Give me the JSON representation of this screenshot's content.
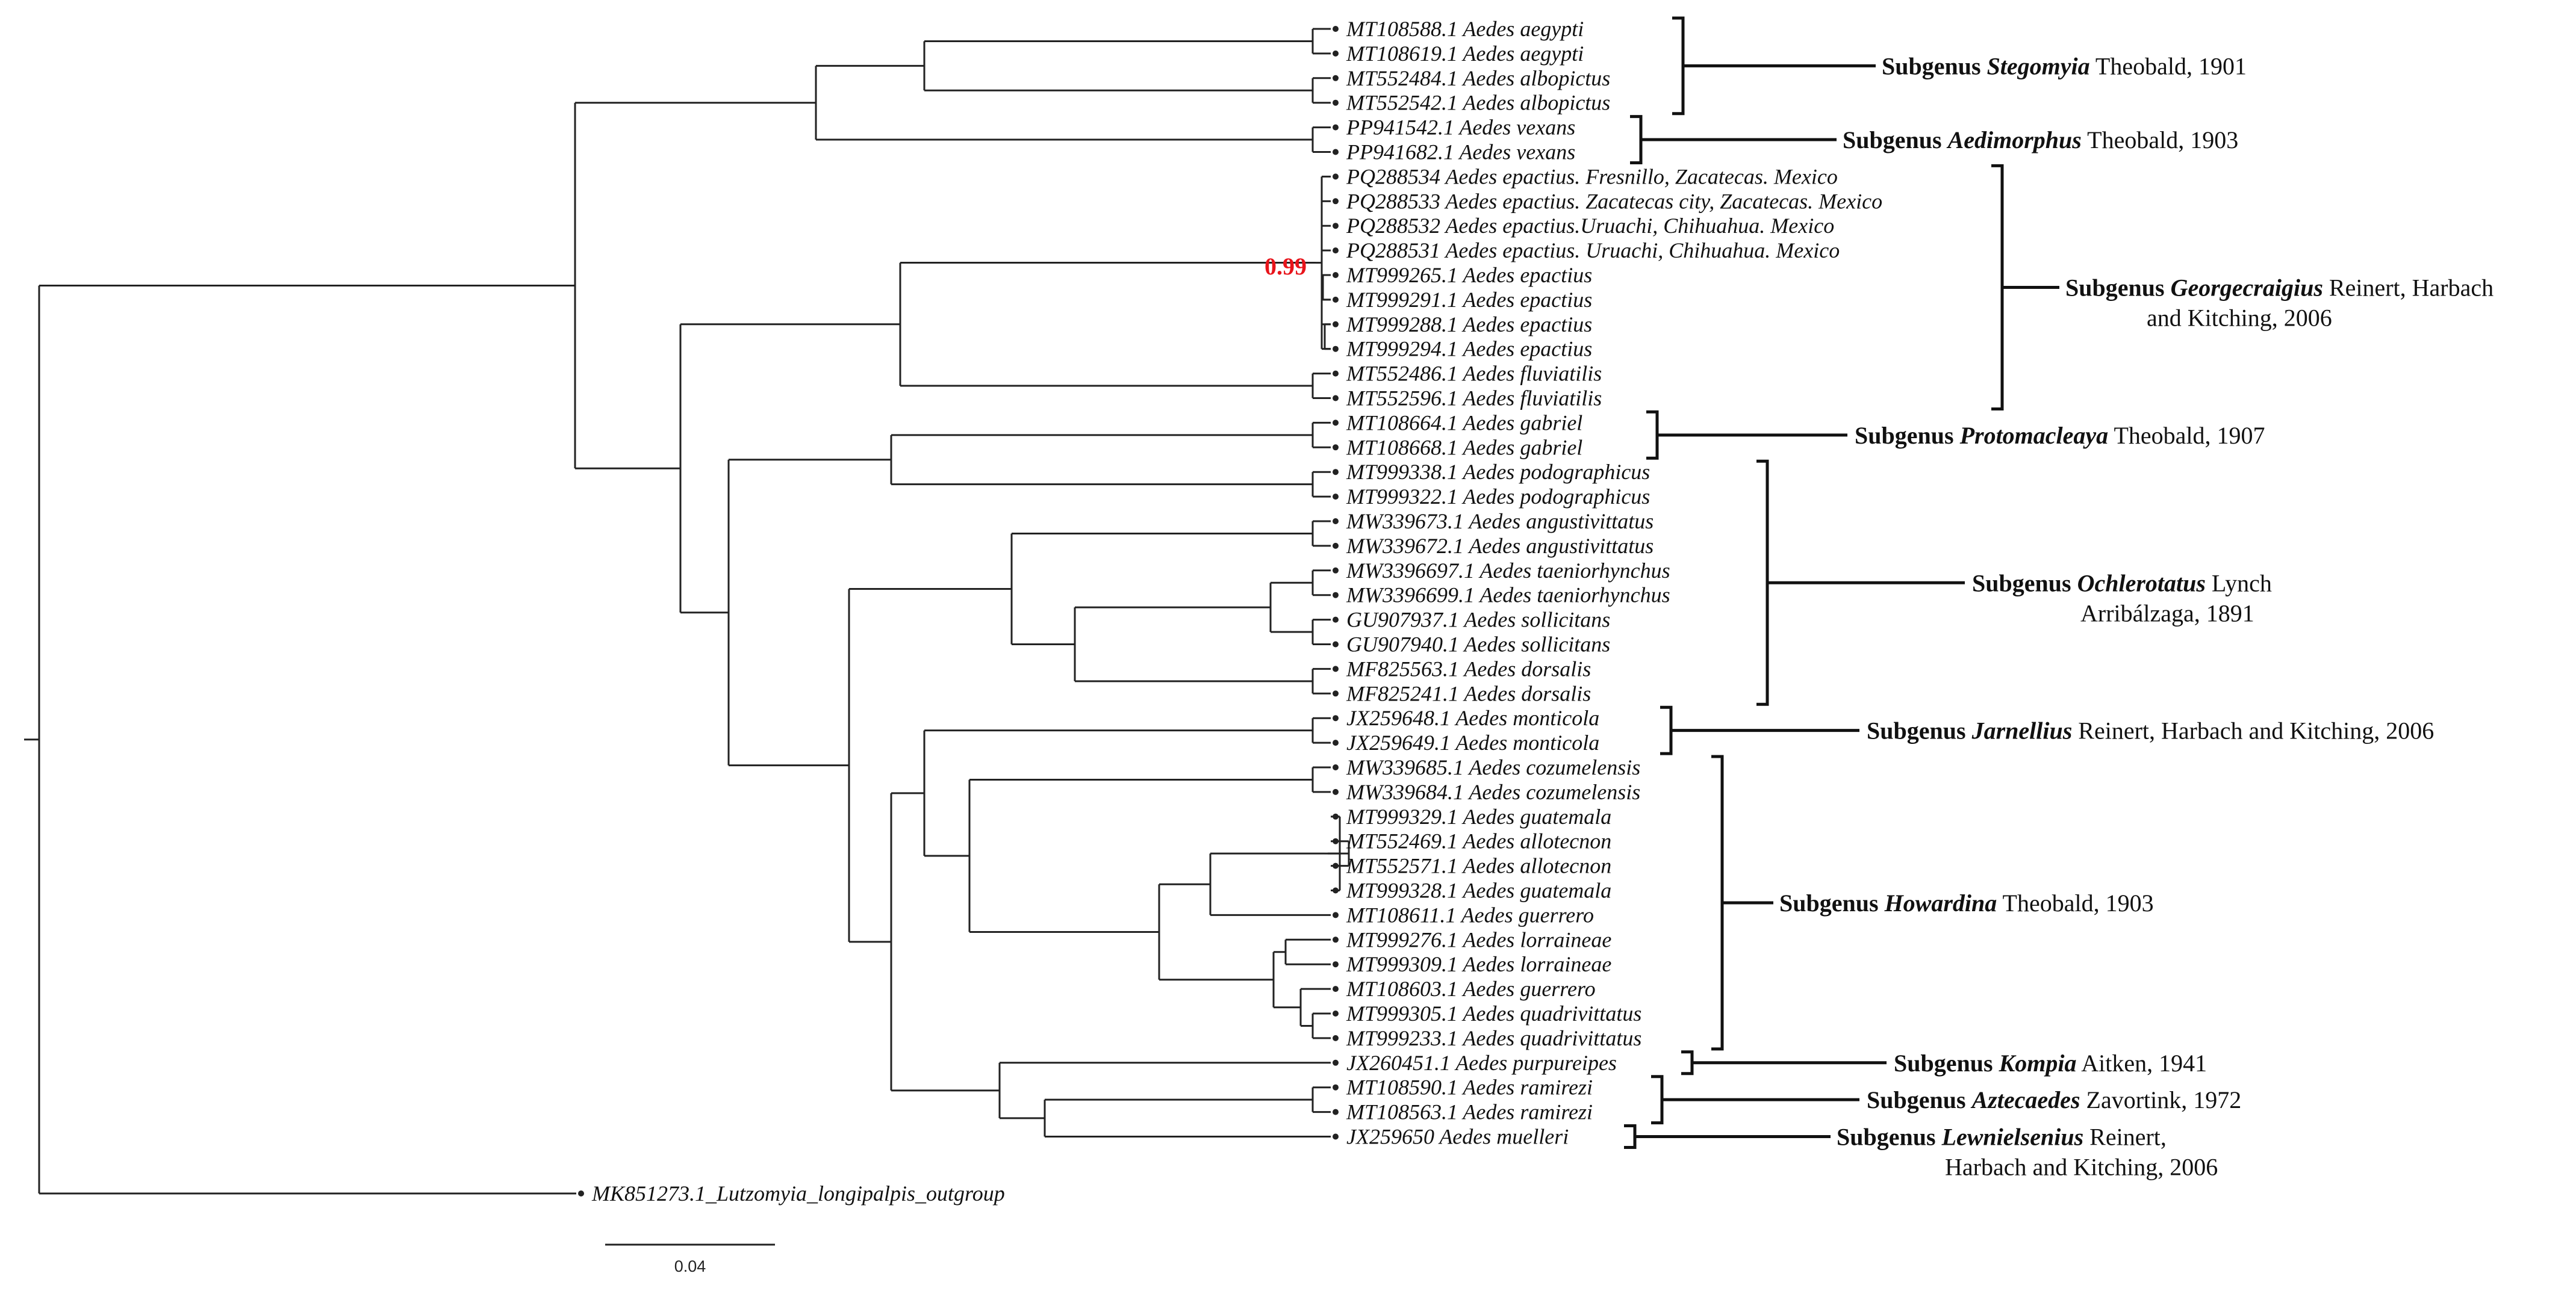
{
  "tips": [
    {
      "id": "t1",
      "label": "MT108588.1 Aedes aegypti"
    },
    {
      "id": "t2",
      "label": "MT108619.1 Aedes aegypti"
    },
    {
      "id": "t3",
      "label": "MT552484.1 Aedes albopictus"
    },
    {
      "id": "t4",
      "label": "MT552542.1 Aedes albopictus"
    },
    {
      "id": "t5",
      "label": "PP941542.1 Aedes vexans"
    },
    {
      "id": "t6",
      "label": "PP941682.1 Aedes vexans"
    },
    {
      "id": "t7",
      "label": "PQ288534 Aedes epactius. Fresnillo, Zacatecas. Mexico"
    },
    {
      "id": "t8",
      "label": "PQ288533 Aedes epactius. Zacatecas city, Zacatecas. Mexico"
    },
    {
      "id": "t9",
      "label": "PQ288532 Aedes epactius.Uruachi, Chihuahua. Mexico"
    },
    {
      "id": "t10",
      "label": "PQ288531 Aedes epactius. Uruachi, Chihuahua. Mexico"
    },
    {
      "id": "t11",
      "label": "MT999265.1 Aedes epactius"
    },
    {
      "id": "t12",
      "label": "MT999291.1 Aedes epactius"
    },
    {
      "id": "t13",
      "label": "MT999288.1 Aedes epactius"
    },
    {
      "id": "t14",
      "label": "MT999294.1 Aedes epactius"
    },
    {
      "id": "t15",
      "label": "MT552486.1 Aedes fluviatilis"
    },
    {
      "id": "t16",
      "label": "MT552596.1 Aedes fluviatilis"
    },
    {
      "id": "t17",
      "label": "MT108664.1 Aedes gabriel"
    },
    {
      "id": "t18",
      "label": "MT108668.1 Aedes gabriel"
    },
    {
      "id": "t19",
      "label": "MT999338.1 Aedes podographicus"
    },
    {
      "id": "t20",
      "label": "MT999322.1 Aedes podographicus"
    },
    {
      "id": "t21",
      "label": "MW339673.1 Aedes angustivittatus"
    },
    {
      "id": "t22",
      "label": "MW339672.1 Aedes angustivittatus"
    },
    {
      "id": "t23",
      "label": "MW3396697.1 Aedes taeniorhynchus"
    },
    {
      "id": "t24",
      "label": "MW3396699.1 Aedes taeniorhynchus"
    },
    {
      "id": "t25",
      "label": "GU907937.1 Aedes sollicitans"
    },
    {
      "id": "t26",
      "label": "GU907940.1 Aedes sollicitans"
    },
    {
      "id": "t27",
      "label": "MF825563.1 Aedes dorsalis"
    },
    {
      "id": "t28",
      "label": "MF825241.1 Aedes dorsalis"
    },
    {
      "id": "t29",
      "label": "JX259648.1 Aedes monticola"
    },
    {
      "id": "t30",
      "label": "JX259649.1 Aedes monticola"
    },
    {
      "id": "t31",
      "label": "MW339685.1 Aedes cozumelensis"
    },
    {
      "id": "t32",
      "label": "MW339684.1 Aedes cozumelensis"
    },
    {
      "id": "t33",
      "label": "MT999329.1 Aedes guatemala"
    },
    {
      "id": "t34",
      "label": "MT552469.1 Aedes allotecnon"
    },
    {
      "id": "t35",
      "label": "MT552571.1 Aedes allotecnon"
    },
    {
      "id": "t36",
      "label": "MT999328.1 Aedes guatemala"
    },
    {
      "id": "t37",
      "label": "MT108611.1 Aedes guerrero"
    },
    {
      "id": "t38",
      "label": "MT999276.1 Aedes lorraineae"
    },
    {
      "id": "t39",
      "label": "MT999309.1 Aedes lorraineae"
    },
    {
      "id": "t40",
      "label": "MT108603.1 Aedes guerrero"
    },
    {
      "id": "t41",
      "label": "MT999305.1 Aedes quadrivittatus"
    },
    {
      "id": "t42",
      "label": "MT999233.1 Aedes quadrivittatus"
    },
    {
      "id": "t43",
      "label": "JX260451.1 Aedes purpureipes"
    },
    {
      "id": "t44",
      "label": "MT108590.1 Aedes ramirezi"
    },
    {
      "id": "t45",
      "label": "MT108563.1 Aedes ramirezi"
    },
    {
      "id": "t46",
      "label": "JX259650 Aedes muelleri"
    },
    {
      "id": "out",
      "label": "MK851273.1_Lutzomyia_longipalpis_outgroup"
    }
  ],
  "subgenera": [
    {
      "id": "g1",
      "prefix": "Subgenus ",
      "name": "Stegomyia",
      "author": " Theobald, 1901",
      "author2": ""
    },
    {
      "id": "g2",
      "prefix": "Subgenus ",
      "name": "Aedimorphus",
      "author": " Theobald, 1903",
      "author2": ""
    },
    {
      "id": "g3",
      "prefix": "Subgenus ",
      "name": "Georgecraigius",
      "author": " Reinert, Harbach",
      "author2": "and Kitching, 2006"
    },
    {
      "id": "g4",
      "prefix": "Subgenus ",
      "name": "Protomacleaya",
      "author": " Theobald, 1907",
      "author2": ""
    },
    {
      "id": "g5",
      "prefix": "Subgenus ",
      "name": "Ochlerotatus",
      "author": " Lynch",
      "author2": "Arribálzaga, 1891"
    },
    {
      "id": "g6",
      "prefix": "Subgenus ",
      "name": "Jarnellius",
      "author": " Reinert, Harbach and Kitching, 2006",
      "author2": ""
    },
    {
      "id": "g7",
      "prefix": "Subgenus ",
      "name": "Howardina",
      "author": " Theobald, 1903",
      "author2": ""
    },
    {
      "id": "g8",
      "prefix": "Subgenus ",
      "name": "Kompia",
      "author": " Aitken, 1941",
      "author2": ""
    },
    {
      "id": "g9",
      "prefix": "Subgenus ",
      "name": "Aztecaedes",
      "author": " Zavortink, 1972",
      "author2": ""
    },
    {
      "id": "g10",
      "prefix": "Subgenus ",
      "name": "Lewnielsenius",
      "author": " Reinert,",
      "author2": "Harbach and Kitching, 2006"
    }
  ],
  "support": {
    "value": "0.99",
    "color": "#e8141b"
  },
  "scale_bar": {
    "label": "0.04"
  },
  "colors": {
    "line": "#222222",
    "text": "#111111",
    "support": "#e8141b"
  }
}
